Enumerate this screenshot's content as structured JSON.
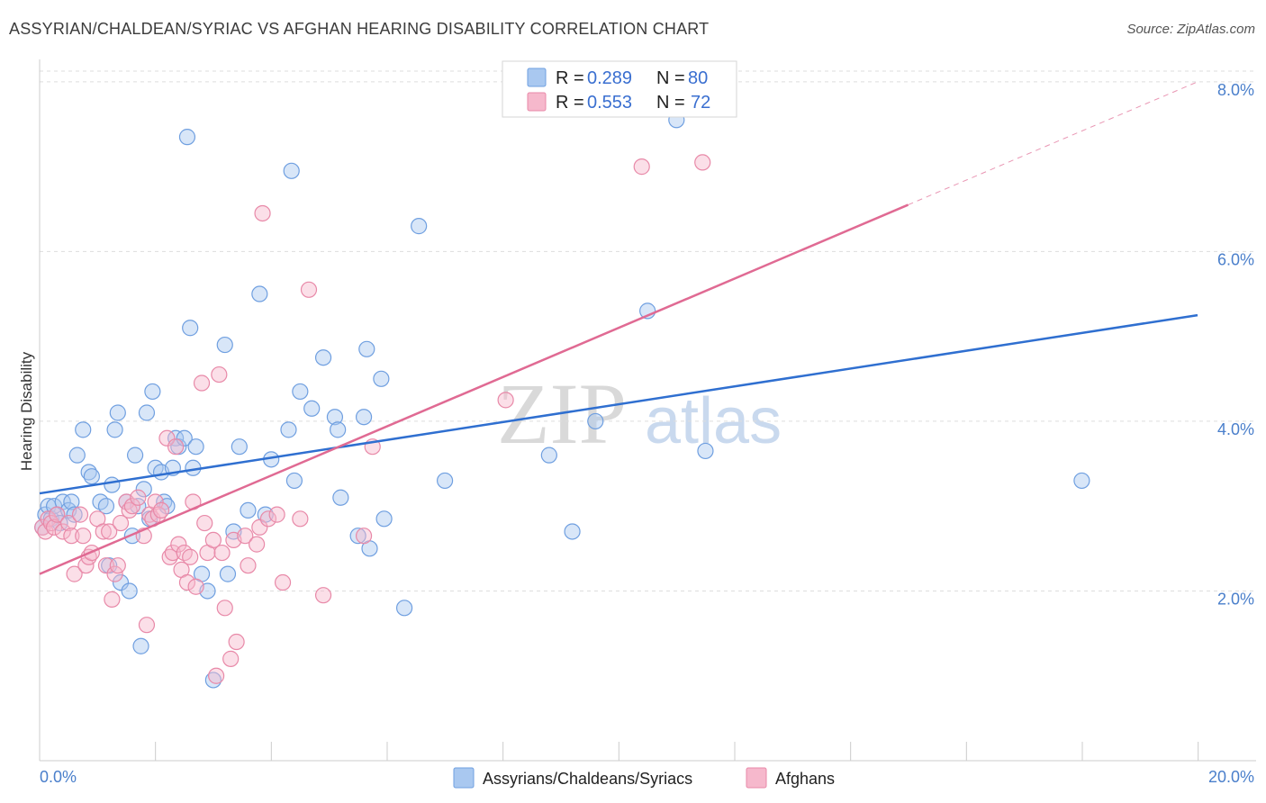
{
  "title": "ASSYRIAN/CHALDEAN/SYRIAC VS AFGHAN HEARING DISABILITY CORRELATION CHART",
  "source": "Source: ZipAtlas.com",
  "watermark": {
    "zip": "ZIP",
    "atlas": "atlas"
  },
  "legend": {
    "r_label": "R =",
    "n_label": "N =",
    "rows": [
      {
        "r": "0.289",
        "n": "80"
      },
      {
        "r": "0.553",
        "n": "72"
      }
    ]
  },
  "colors": {
    "blue_fill": "#a9c8f0",
    "blue_stroke": "#6f9fe0",
    "blue_line": "#2f6fd0",
    "pink_fill": "#f6b8cc",
    "pink_stroke": "#e889a8",
    "pink_line": "#e06a93",
    "grid": "#dddddd",
    "axis_label": "#4a7fcb"
  },
  "chart_data": {
    "type": "scatter",
    "title": "ASSYRIAN/CHALDEAN/SYRIAC VS AFGHAN HEARING DISABILITY CORRELATION CHART",
    "xlabel": "",
    "ylabel": "Hearing Disability",
    "xlim": [
      0,
      20
    ],
    "ylim": [
      0,
      8.2
    ],
    "x_tick_labels": [
      "0.0%",
      "20.0%"
    ],
    "y_ticks": [
      2,
      4,
      6,
      8
    ],
    "y_tick_labels": [
      "2.0%",
      "4.0%",
      "6.0%",
      "8.0%"
    ],
    "series": [
      {
        "name": "Assyrians/Chaldeans/Syriacs",
        "color": "blue",
        "trend": {
          "x": [
            0,
            20
          ],
          "y": [
            3.15,
            5.25
          ],
          "dashed_to": null
        },
        "points": [
          [
            0.1,
            2.9
          ],
          [
            0.15,
            3.0
          ],
          [
            0.2,
            2.85
          ],
          [
            0.25,
            3.0
          ],
          [
            0.3,
            2.9
          ],
          [
            0.35,
            2.8
          ],
          [
            0.4,
            3.05
          ],
          [
            0.5,
            2.95
          ],
          [
            0.55,
            3.05
          ],
          [
            0.6,
            2.9
          ],
          [
            0.65,
            3.6
          ],
          [
            0.75,
            3.9
          ],
          [
            0.85,
            3.4
          ],
          [
            0.9,
            3.35
          ],
          [
            1.05,
            3.05
          ],
          [
            1.15,
            3.0
          ],
          [
            1.2,
            2.3
          ],
          [
            1.25,
            3.25
          ],
          [
            1.3,
            3.9
          ],
          [
            1.35,
            4.1
          ],
          [
            1.4,
            2.1
          ],
          [
            1.5,
            3.05
          ],
          [
            1.55,
            2.0
          ],
          [
            1.6,
            2.65
          ],
          [
            1.65,
            3.6
          ],
          [
            1.7,
            3.0
          ],
          [
            1.75,
            1.35
          ],
          [
            1.8,
            3.2
          ],
          [
            1.85,
            4.1
          ],
          [
            1.9,
            2.85
          ],
          [
            1.95,
            4.35
          ],
          [
            2.0,
            3.45
          ],
          [
            2.1,
            3.4
          ],
          [
            2.15,
            3.05
          ],
          [
            2.2,
            3.0
          ],
          [
            2.3,
            3.45
          ],
          [
            2.35,
            3.8
          ],
          [
            2.4,
            3.7
          ],
          [
            2.5,
            3.8
          ],
          [
            2.55,
            7.35
          ],
          [
            2.6,
            5.1
          ],
          [
            2.65,
            3.45
          ],
          [
            2.7,
            3.7
          ],
          [
            2.8,
            2.2
          ],
          [
            2.9,
            2.0
          ],
          [
            3.0,
            0.95
          ],
          [
            3.2,
            4.9
          ],
          [
            3.25,
            2.2
          ],
          [
            3.35,
            2.7
          ],
          [
            3.45,
            3.7
          ],
          [
            3.6,
            2.95
          ],
          [
            3.8,
            5.5
          ],
          [
            3.9,
            2.9
          ],
          [
            4.0,
            3.55
          ],
          [
            4.3,
            3.9
          ],
          [
            4.35,
            6.95
          ],
          [
            4.4,
            3.3
          ],
          [
            4.5,
            4.35
          ],
          [
            4.7,
            4.15
          ],
          [
            4.9,
            4.75
          ],
          [
            5.1,
            4.05
          ],
          [
            5.15,
            3.9
          ],
          [
            5.2,
            3.1
          ],
          [
            5.5,
            2.65
          ],
          [
            5.6,
            4.05
          ],
          [
            5.65,
            4.85
          ],
          [
            5.7,
            2.5
          ],
          [
            5.9,
            4.5
          ],
          [
            5.95,
            2.85
          ],
          [
            6.3,
            1.8
          ],
          [
            6.55,
            6.3
          ],
          [
            7.0,
            3.3
          ],
          [
            8.8,
            3.6
          ],
          [
            9.2,
            2.7
          ],
          [
            9.6,
            4.0
          ],
          [
            10.5,
            5.3
          ],
          [
            11.0,
            7.55
          ],
          [
            11.5,
            3.65
          ],
          [
            18.0,
            3.3
          ],
          [
            0.05,
            2.75
          ]
        ]
      },
      {
        "name": "Afghans",
        "color": "pink",
        "trend": {
          "x": [
            0,
            15
          ],
          "y": [
            2.2,
            6.55
          ],
          "dashed_to": [
            20,
            8.0
          ]
        },
        "points": [
          [
            0.05,
            2.75
          ],
          [
            0.1,
            2.7
          ],
          [
            0.15,
            2.85
          ],
          [
            0.2,
            2.8
          ],
          [
            0.25,
            2.75
          ],
          [
            0.3,
            2.9
          ],
          [
            0.4,
            2.7
          ],
          [
            0.5,
            2.8
          ],
          [
            0.55,
            2.65
          ],
          [
            0.6,
            2.2
          ],
          [
            0.7,
            2.9
          ],
          [
            0.75,
            2.65
          ],
          [
            0.8,
            2.3
          ],
          [
            0.85,
            2.4
          ],
          [
            0.9,
            2.45
          ],
          [
            1.0,
            2.85
          ],
          [
            1.1,
            2.7
          ],
          [
            1.15,
            2.3
          ],
          [
            1.2,
            2.7
          ],
          [
            1.25,
            1.9
          ],
          [
            1.3,
            2.2
          ],
          [
            1.35,
            2.3
          ],
          [
            1.4,
            2.8
          ],
          [
            1.5,
            3.05
          ],
          [
            1.55,
            2.95
          ],
          [
            1.6,
            3.0
          ],
          [
            1.7,
            3.1
          ],
          [
            1.8,
            2.65
          ],
          [
            1.85,
            1.6
          ],
          [
            1.9,
            2.9
          ],
          [
            1.95,
            2.85
          ],
          [
            2.0,
            3.05
          ],
          [
            2.05,
            2.9
          ],
          [
            2.1,
            2.95
          ],
          [
            2.2,
            3.8
          ],
          [
            2.25,
            2.4
          ],
          [
            2.3,
            2.45
          ],
          [
            2.35,
            3.7
          ],
          [
            2.4,
            2.55
          ],
          [
            2.45,
            2.25
          ],
          [
            2.5,
            2.45
          ],
          [
            2.55,
            2.1
          ],
          [
            2.6,
            2.4
          ],
          [
            2.65,
            3.05
          ],
          [
            2.7,
            2.05
          ],
          [
            2.8,
            4.45
          ],
          [
            2.85,
            2.8
          ],
          [
            2.9,
            2.45
          ],
          [
            3.0,
            2.6
          ],
          [
            3.05,
            1.0
          ],
          [
            3.1,
            4.55
          ],
          [
            3.15,
            2.45
          ],
          [
            3.2,
            1.8
          ],
          [
            3.3,
            1.2
          ],
          [
            3.35,
            2.6
          ],
          [
            3.4,
            1.4
          ],
          [
            3.55,
            2.65
          ],
          [
            3.6,
            2.3
          ],
          [
            3.75,
            2.55
          ],
          [
            3.8,
            2.75
          ],
          [
            3.85,
            6.45
          ],
          [
            3.95,
            2.85
          ],
          [
            4.1,
            2.9
          ],
          [
            4.2,
            2.1
          ],
          [
            4.5,
            2.85
          ],
          [
            4.65,
            5.55
          ],
          [
            4.9,
            1.95
          ],
          [
            5.6,
            2.65
          ],
          [
            5.75,
            3.7
          ],
          [
            8.05,
            4.25
          ],
          [
            10.4,
            7.0
          ],
          [
            11.45,
            7.05
          ]
        ]
      }
    ]
  },
  "bottom_legend": [
    "Assyrians/Chaldeans/Syriacs",
    "Afghans"
  ]
}
